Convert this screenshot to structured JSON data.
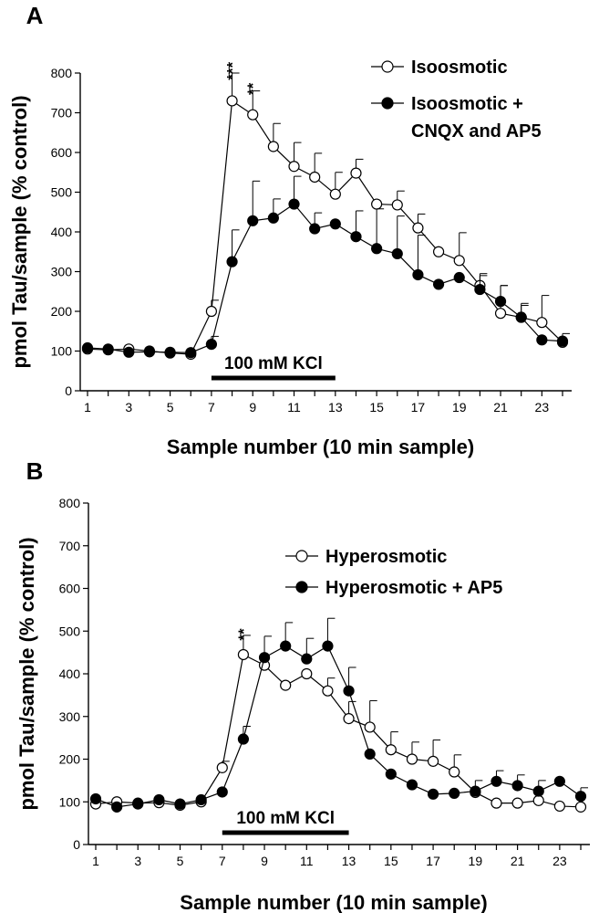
{
  "chart_data": [
    {
      "type": "line",
      "panel_label": "A",
      "xlabel": "Sample number (10 min sample)",
      "ylabel": "pmol Tau/sample (% control)",
      "xlim": [
        1,
        24
      ],
      "ylim": [
        0,
        800
      ],
      "x_ticks": [
        1,
        3,
        5,
        7,
        9,
        11,
        13,
        15,
        17,
        19,
        21,
        23
      ],
      "y_ticks": [
        0,
        100,
        200,
        300,
        400,
        500,
        600,
        700,
        800
      ],
      "x": [
        1,
        2,
        3,
        4,
        5,
        6,
        7,
        8,
        9,
        10,
        11,
        12,
        13,
        14,
        15,
        16,
        17,
        18,
        19,
        20,
        21,
        22,
        23,
        24
      ],
      "series": [
        {
          "name": "Isoosmotic",
          "marker": "open-circle",
          "values": [
            105,
            103,
            105,
            100,
            95,
            92,
            200,
            730,
            695,
            615,
            565,
            538,
            495,
            548,
            470,
            468,
            410,
            350,
            328,
            265,
            195,
            185,
            172,
            122
          ],
          "errors": [
            0,
            0,
            0,
            0,
            0,
            0,
            28,
            70,
            60,
            58,
            60,
            60,
            55,
            35,
            0,
            35,
            35,
            0,
            70,
            25,
            70,
            30,
            68,
            22
          ]
        },
        {
          "name": "Isoosmotic + CNQX and AP5",
          "marker": "filled-circle",
          "values": [
            108,
            105,
            97,
            98,
            97,
            96,
            117,
            325,
            428,
            435,
            470,
            408,
            420,
            388,
            358,
            345,
            292,
            268,
            285,
            255,
            225,
            185,
            128,
            125
          ],
          "errors": [
            0,
            0,
            0,
            0,
            0,
            0,
            20,
            80,
            100,
            48,
            70,
            40,
            0,
            65,
            100,
            95,
            100,
            0,
            0,
            40,
            40,
            35,
            0,
            0
          ]
        }
      ],
      "annotations": [
        {
          "text": "***",
          "x": 8,
          "y": 805
        },
        {
          "text": "**",
          "x": 9,
          "y": 760
        }
      ],
      "stimulus_bar": {
        "label": "100 mM KCl",
        "x_start": 7,
        "x_end": 13
      }
    },
    {
      "type": "line",
      "panel_label": "B",
      "xlabel": "Sample number (10 min sample)",
      "ylabel": "pmol Tau/sample (% control)",
      "xlim": [
        1,
        24
      ],
      "ylim": [
        0,
        800
      ],
      "x_ticks": [
        1,
        3,
        5,
        7,
        9,
        11,
        13,
        15,
        17,
        19,
        21,
        23
      ],
      "y_ticks": [
        0,
        100,
        200,
        300,
        400,
        500,
        600,
        700,
        800
      ],
      "x": [
        1,
        2,
        3,
        4,
        5,
        6,
        7,
        8,
        9,
        10,
        11,
        12,
        13,
        14,
        15,
        16,
        17,
        18,
        19,
        20,
        21,
        22,
        23,
        24
      ],
      "series": [
        {
          "name": "Hyperosmotic",
          "marker": "open-circle",
          "values": [
            95,
            100,
            97,
            98,
            92,
            100,
            180,
            445,
            420,
            373,
            400,
            360,
            295,
            275,
            222,
            200,
            195,
            170,
            122,
            97,
            97,
            103,
            90,
            88
          ],
          "errors": [
            0,
            0,
            0,
            0,
            0,
            0,
            15,
            45,
            0,
            0,
            0,
            30,
            40,
            62,
            42,
            40,
            50,
            40,
            0,
            0,
            0,
            0,
            0,
            0
          ]
        },
        {
          "name": "Hyperosmotic + AP5",
          "marker": "filled-circle",
          "values": [
            107,
            88,
            95,
            105,
            95,
            105,
            123,
            247,
            438,
            465,
            435,
            465,
            360,
            212,
            165,
            140,
            118,
            120,
            125,
            148,
            138,
            125,
            148,
            113
          ],
          "errors": [
            0,
            0,
            0,
            0,
            0,
            0,
            0,
            30,
            50,
            55,
            48,
            65,
            55,
            0,
            0,
            0,
            0,
            0,
            25,
            25,
            25,
            25,
            0,
            20
          ]
        }
      ],
      "annotations": [
        {
          "text": "**",
          "x": 8,
          "y": 492
        }
      ],
      "stimulus_bar": {
        "label": "100 mM KCl",
        "x_start": 7,
        "x_end": 13
      }
    }
  ]
}
